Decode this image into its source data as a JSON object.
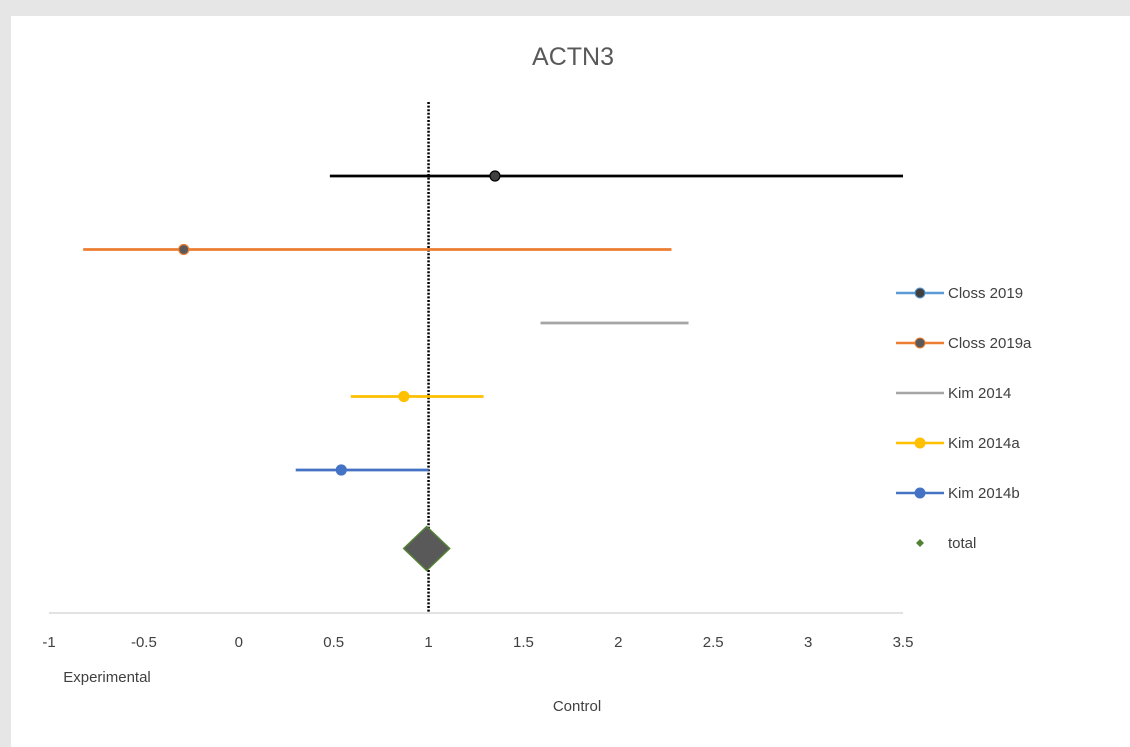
{
  "chart_data": {
    "type": "forest",
    "title": "ACTN3",
    "xlabel_left": "Experimental",
    "xlabel_right": "Control",
    "x_ticks": [
      "-1",
      "-0.5",
      "0",
      "0.5",
      "1",
      "1.5",
      "2",
      "2.5",
      "3",
      "3.5"
    ],
    "x_tick_values": [
      -1,
      -0.5,
      0,
      0.5,
      1,
      1.5,
      2,
      2.5,
      3,
      3.5
    ],
    "xlim": [
      -1,
      3.5
    ],
    "reference_line": 1,
    "legend_position": "right",
    "series": [
      {
        "name": "Closs 2019",
        "point": 1.35,
        "ci": [
          0.48,
          3.5
        ],
        "color": "#000000",
        "marker_color": "#404040",
        "legend_line_color": "#5b9bd5",
        "marker": "circle"
      },
      {
        "name": "Closs 2019a",
        "point": -0.29,
        "ci": [
          -0.82,
          2.28
        ],
        "color": "#ed7d31",
        "marker_color": "#595959",
        "legend_line_color": "#ed7d31",
        "marker": "circle"
      },
      {
        "name": "Kim 2014",
        "point": null,
        "ci": [
          1.59,
          2.37
        ],
        "color": "#a5a5a5",
        "marker_color": "#a5a5a5",
        "legend_line_color": "#a5a5a5",
        "marker": "none"
      },
      {
        "name": "Kim 2014a",
        "point": 0.87,
        "ci": [
          0.59,
          1.29
        ],
        "color": "#ffc000",
        "marker_color": "#ffc000",
        "legend_line_color": "#ffc000",
        "marker": "circle"
      },
      {
        "name": "Kim 2014b",
        "point": 0.54,
        "ci": [
          0.3,
          1.0
        ],
        "color": "#4472c4",
        "marker_color": "#4472c4",
        "legend_line_color": "#4472c4",
        "marker": "circle"
      }
    ],
    "total": {
      "name": "total",
      "point": 0.99,
      "color": "#595959",
      "outline_color": "#548235"
    }
  }
}
